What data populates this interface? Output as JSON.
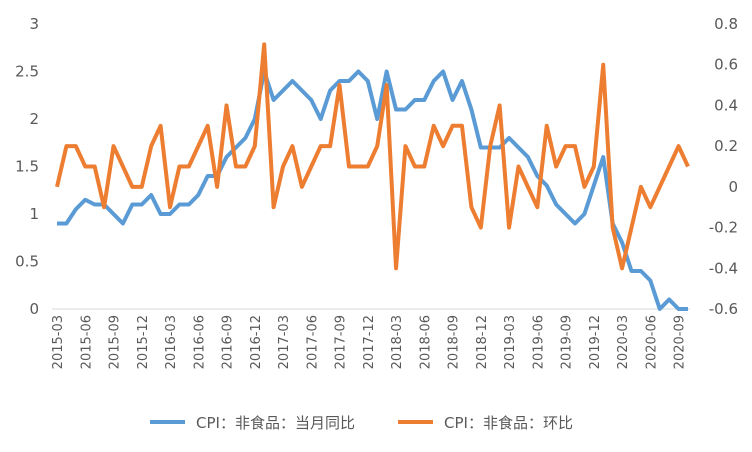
{
  "chart_data": {
    "type": "line",
    "left_axis": {
      "min": 0,
      "max": 3,
      "ticks": [
        "0",
        "0.5",
        "1",
        "1.5",
        "2",
        "2.5",
        "3"
      ]
    },
    "right_axis": {
      "min": -0.6,
      "max": 0.8,
      "ticks": [
        "-0.6",
        "-0.4",
        "-0.2",
        "0",
        "0.2",
        "0.4",
        "0.6",
        "0.8"
      ]
    },
    "x_tick_labels": [
      "2015-03",
      "2015-06",
      "2015-09",
      "2015-12",
      "2016-03",
      "2016-06",
      "2016-09",
      "2016-12",
      "2017-03",
      "2017-06",
      "2017-09",
      "2017-12",
      "2018-03",
      "2018-06",
      "2018-09",
      "2018-12",
      "2019-03",
      "2019-06",
      "2019-09",
      "2019-12",
      "2020-03",
      "2020-06",
      "2020-09"
    ],
    "x_start": "2015-03",
    "x_count": 68,
    "series": [
      {
        "name": "CPI：非食品：当月同比",
        "axis": "left",
        "color": "#5B9BD5",
        "values": [
          0.9,
          0.9,
          1.05,
          1.15,
          1.1,
          1.1,
          1.0,
          0.9,
          1.1,
          1.1,
          1.2,
          1.0,
          1.0,
          1.1,
          1.1,
          1.2,
          1.4,
          1.4,
          1.6,
          1.7,
          1.8,
          2.0,
          2.5,
          2.2,
          2.3,
          2.4,
          2.3,
          2.2,
          2.0,
          2.3,
          2.4,
          2.4,
          2.5,
          2.4,
          2.0,
          2.5,
          2.1,
          2.1,
          2.2,
          2.2,
          2.4,
          2.5,
          2.2,
          2.4,
          2.1,
          1.7,
          1.7,
          1.7,
          1.8,
          1.7,
          1.6,
          1.4,
          1.3,
          1.1,
          1.0,
          0.9,
          1.0,
          1.3,
          1.6,
          0.9,
          0.7,
          0.4,
          0.4,
          0.3,
          0.0,
          0.1,
          0.0,
          0.0
        ]
      },
      {
        "name": "CPI：非食品：环比",
        "axis": "right",
        "color": "#ED7D31",
        "values": [
          0.0,
          0.2,
          0.2,
          0.1,
          0.1,
          -0.1,
          0.2,
          0.1,
          0.0,
          0.0,
          0.2,
          0.3,
          -0.1,
          0.1,
          0.1,
          0.2,
          0.3,
          0.0,
          0.4,
          0.1,
          0.1,
          0.2,
          0.7,
          -0.1,
          0.1,
          0.2,
          0.0,
          0.1,
          0.2,
          0.2,
          0.5,
          0.1,
          0.1,
          0.1,
          0.2,
          0.5,
          -0.4,
          0.2,
          0.1,
          0.1,
          0.3,
          0.2,
          0.3,
          0.3,
          -0.1,
          -0.2,
          0.2,
          0.4,
          -0.2,
          0.1,
          0.0,
          -0.1,
          0.3,
          0.1,
          0.2,
          0.2,
          0.0,
          0.1,
          0.6,
          -0.2,
          -0.4,
          -0.2,
          0.0,
          -0.1,
          0.0,
          0.1,
          0.2,
          0.1
        ]
      }
    ]
  }
}
